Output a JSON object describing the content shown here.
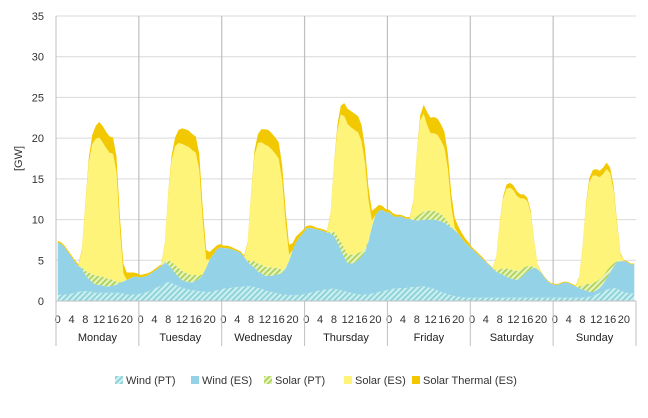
{
  "chart_data": {
    "type": "area",
    "stacked": true,
    "ylabel": "[GW]",
    "ylim": [
      0,
      35
    ],
    "yticks": [
      0,
      5,
      10,
      15,
      20,
      25,
      30,
      35
    ],
    "grid": true,
    "legend_position": "bottom",
    "days": [
      "Monday",
      "Tuesday",
      "Wednesday",
      "Thursday",
      "Friday",
      "Saturday",
      "Sunday"
    ],
    "hour_labels": [
      "0",
      "4",
      "8",
      "12",
      "16",
      "20"
    ],
    "series": [
      {
        "name": "Wind (PT)",
        "color": "#9fdcdc",
        "pattern": "hatch",
        "values": [
          0.7,
          0.8,
          0.8,
          0.8,
          0.9,
          1.0,
          1.1,
          1.2,
          1.2,
          1.2,
          1.1,
          1.0,
          1.0,
          1.0,
          1.0,
          1.0,
          1.0,
          1.0,
          1.0,
          0.9,
          0.8,
          0.8,
          0.8,
          0.8,
          0.9,
          1.0,
          1.1,
          1.3,
          1.5,
          1.7,
          1.9,
          2.2,
          2.3,
          2.2,
          2.0,
          1.8,
          1.6,
          1.5,
          1.4,
          1.3,
          1.3,
          1.2,
          1.2,
          1.1,
          1.1,
          1.2,
          1.3,
          1.4,
          1.5,
          1.6,
          1.6,
          1.7,
          1.7,
          1.7,
          1.8,
          1.8,
          1.8,
          1.7,
          1.6,
          1.5,
          1.3,
          1.2,
          1.1,
          1.0,
          0.9,
          0.8,
          0.8,
          0.7,
          0.7,
          0.7,
          0.8,
          0.8,
          0.9,
          1.0,
          1.1,
          1.2,
          1.3,
          1.4,
          1.4,
          1.5,
          1.5,
          1.4,
          1.3,
          1.2,
          1.1,
          1.0,
          0.9,
          0.8,
          0.8,
          0.8,
          0.8,
          0.9,
          1.0,
          1.1,
          1.2,
          1.3,
          1.4,
          1.5,
          1.5,
          1.6,
          1.6,
          1.6,
          1.7,
          1.7,
          1.7,
          1.8,
          1.8,
          1.7,
          1.6,
          1.5,
          1.3,
          1.1,
          1.0,
          0.8,
          0.7,
          0.6,
          0.5,
          0.5,
          0.4,
          0.4,
          0.4,
          0.4,
          0.4,
          0.4,
          0.4,
          0.4,
          0.4,
          0.4,
          0.4,
          0.4,
          0.4,
          0.4,
          0.4,
          0.4,
          0.4,
          0.4,
          0.4,
          0.4,
          0.4,
          0.4,
          0.4,
          0.4,
          0.4,
          0.4,
          0.4,
          0.4,
          0.4,
          0.4,
          0.4,
          0.4,
          0.4,
          0.4,
          0.4,
          0.5,
          0.5,
          0.6,
          0.8,
          1.0,
          1.2,
          1.4,
          1.5,
          1.6,
          1.5,
          1.3,
          1.1,
          1.0,
          0.9,
          0.9
        ]
      },
      {
        "name": "Wind (ES)",
        "color": "#94d3e7",
        "values": [
          6.5,
          6.2,
          5.8,
          5.2,
          4.5,
          3.8,
          3.2,
          2.8,
          2.0,
          1.5,
          1.2,
          1.0,
          1.0,
          0.9,
          0.8,
          0.8,
          0.9,
          1.0,
          1.2,
          1.5,
          1.8,
          2.0,
          2.2,
          2.2,
          2.0,
          2.0,
          2.0,
          2.1,
          2.2,
          2.3,
          2.4,
          2.5,
          2.2,
          1.8,
          1.4,
          1.2,
          1.0,
          0.9,
          0.9,
          1.0,
          1.2,
          1.5,
          2.0,
          3.0,
          4.0,
          4.5,
          5.0,
          5.2,
          5.0,
          4.9,
          4.8,
          4.6,
          4.4,
          4.2,
          3.6,
          3.0,
          2.6,
          2.4,
          2.0,
          1.9,
          1.8,
          1.9,
          2.0,
          2.2,
          2.4,
          2.6,
          3.2,
          4.2,
          5.5,
          6.5,
          7.0,
          7.5,
          8.0,
          8.0,
          7.8,
          7.6,
          7.4,
          7.2,
          7.0,
          6.8,
          6.5,
          5.8,
          5.0,
          4.2,
          3.5,
          3.6,
          3.8,
          4.2,
          4.6,
          5.2,
          6.5,
          8.2,
          9.5,
          10.0,
          10.0,
          9.6,
          9.5,
          9.0,
          8.8,
          8.8,
          8.7,
          8.5,
          8.4,
          8.2,
          8.2,
          8.1,
          8.2,
          8.3,
          8.4,
          8.5,
          8.6,
          8.7,
          8.6,
          8.5,
          8.3,
          8.1,
          7.8,
          7.2,
          6.8,
          6.4,
          6.0,
          5.6,
          5.2,
          4.8,
          4.4,
          4.0,
          3.6,
          3.2,
          3.0,
          2.8,
          2.6,
          2.4,
          2.3,
          2.2,
          2.4,
          2.8,
          3.2,
          3.5,
          3.7,
          3.5,
          3.1,
          2.5,
          2.0,
          1.7,
          1.6,
          1.6,
          1.8,
          1.9,
          1.8,
          1.6,
          1.4,
          1.2,
          1.0,
          0.8,
          0.6,
          0.5,
          0.5,
          0.6,
          0.9,
          1.4,
          2.0,
          2.6,
          3.3,
          3.6,
          3.8,
          3.8,
          3.6,
          3.6
        ]
      },
      {
        "name": "Solar (PT)",
        "color": "#cde58a",
        "pattern": "hatch",
        "values": [
          0,
          0,
          0,
          0,
          0,
          0,
          0,
          0.2,
          0.5,
          0.8,
          1.0,
          1.1,
          1.1,
          1.1,
          1.0,
          0.9,
          0.7,
          0.4,
          0.1,
          0,
          0,
          0,
          0,
          0,
          0,
          0,
          0,
          0,
          0,
          0,
          0,
          0.2,
          0.5,
          0.8,
          1.0,
          1.1,
          1.1,
          1.1,
          1.0,
          0.9,
          0.7,
          0.4,
          0.1,
          0,
          0,
          0,
          0,
          0,
          0,
          0,
          0,
          0,
          0,
          0,
          0,
          0.2,
          0.5,
          0.8,
          1.0,
          1.1,
          1.1,
          1.1,
          1.0,
          0.9,
          0.7,
          0.4,
          0.1,
          0,
          0,
          0,
          0,
          0,
          0,
          0,
          0,
          0,
          0,
          0,
          0,
          0.2,
          0.5,
          0.8,
          1.0,
          1.1,
          1.1,
          1.1,
          1.0,
          0.9,
          0.7,
          0.4,
          0.1,
          0,
          0,
          0,
          0,
          0,
          0,
          0,
          0,
          0,
          0,
          0,
          0,
          0.2,
          0.5,
          0.8,
          1.0,
          1.1,
          1.1,
          1.1,
          1.0,
          0.9,
          0.7,
          0.4,
          0.1,
          0,
          0,
          0,
          0,
          0,
          0,
          0,
          0,
          0,
          0,
          0,
          0,
          0.2,
          0.5,
          0.8,
          1.0,
          1.1,
          1.1,
          1.1,
          1.0,
          0.9,
          0.7,
          0.4,
          0.1,
          0,
          0,
          0,
          0,
          0,
          0,
          0,
          0,
          0,
          0,
          0,
          0,
          0.2,
          0.5,
          0.8,
          1.0,
          1.1,
          1.1,
          1.1,
          1.0,
          0.9,
          0.7,
          0.4,
          0.1,
          0,
          0,
          0,
          0,
          0
        ]
      },
      {
        "name": "Solar (ES)",
        "color": "#fff47a",
        "values": [
          0,
          0,
          0,
          0,
          0,
          0,
          0,
          2.0,
          8.0,
          13.5,
          16.0,
          16.8,
          17.0,
          16.5,
          16.0,
          15.5,
          15.5,
          13.5,
          6.5,
          1.0,
          0,
          0,
          0,
          0,
          0,
          0,
          0,
          0,
          0,
          0,
          0,
          2.0,
          8.0,
          12.5,
          14.6,
          15.3,
          15.6,
          15.6,
          15.6,
          15.3,
          15.0,
          13.0,
          6.5,
          1.0,
          0,
          0,
          0,
          0,
          0,
          0,
          0,
          0,
          0,
          0,
          0,
          2.0,
          8.0,
          13.0,
          14.8,
          15.0,
          15.0,
          14.8,
          14.5,
          14.0,
          13.5,
          11.0,
          5.5,
          0.8,
          0,
          0,
          0,
          0,
          0,
          0,
          0,
          0,
          0,
          0,
          0,
          2.0,
          8.0,
          13.0,
          15.6,
          16.2,
          16.0,
          15.6,
          15.3,
          14.8,
          13.5,
          10.5,
          5.0,
          0.8,
          0,
          0,
          0,
          0,
          0,
          0,
          0,
          0,
          0,
          0,
          0,
          2.0,
          7.5,
          11.5,
          12.0,
          10.5,
          9.5,
          9.5,
          9.5,
          9.0,
          8.5,
          6.5,
          2.5,
          0.3,
          0,
          0,
          0,
          0,
          0,
          0,
          0,
          0,
          0,
          0,
          0,
          1.5,
          5.5,
          8.5,
          9.8,
          10.0,
          9.8,
          9.2,
          8.8,
          8.5,
          8.0,
          6.5,
          3.0,
          0.5,
          0,
          0,
          0,
          0,
          0,
          0,
          0,
          0,
          0,
          0,
          0,
          1.0,
          4.5,
          9.5,
          12.5,
          13.2,
          13.0,
          12.5,
          12.5,
          12.5,
          11.5,
          9.0,
          4.5,
          0.8,
          0,
          0,
          0,
          0
        ]
      },
      {
        "name": "Solar Thermal (ES)",
        "color": "#f2c900",
        "values": [
          0.2,
          0.2,
          0.2,
          0.2,
          0.2,
          0.2,
          0.2,
          0.2,
          0.3,
          0.6,
          1.1,
          1.6,
          1.9,
          2.0,
          2.0,
          2.0,
          2.0,
          1.9,
          1.6,
          1.2,
          0.9,
          0.7,
          0.5,
          0.4,
          0.3,
          0.3,
          0.3,
          0.2,
          0.2,
          0.2,
          0.2,
          0.2,
          0.3,
          0.6,
          1.1,
          1.6,
          1.9,
          2.0,
          2.0,
          2.0,
          2.0,
          1.9,
          1.6,
          1.2,
          0.9,
          0.7,
          0.5,
          0.4,
          0.3,
          0.3,
          0.3,
          0.2,
          0.2,
          0.2,
          0.2,
          0.2,
          0.3,
          0.6,
          1.1,
          1.6,
          1.9,
          2.0,
          2.0,
          2.0,
          2.0,
          1.9,
          1.6,
          1.2,
          0.9,
          0.7,
          0.5,
          0.4,
          0.3,
          0.3,
          0.3,
          0.2,
          0.2,
          0.2,
          0.2,
          0.2,
          0.3,
          0.6,
          1.1,
          1.6,
          1.9,
          2.0,
          2.0,
          2.0,
          2.0,
          1.9,
          1.6,
          1.2,
          0.9,
          0.7,
          0.5,
          0.4,
          0.3,
          0.3,
          0.3,
          0.2,
          0.2,
          0.2,
          0.2,
          0.2,
          0.3,
          0.6,
          1.1,
          1.6,
          1.9,
          2.0,
          2.0,
          2.0,
          2.0,
          1.9,
          1.6,
          1.2,
          0.9,
          0.7,
          0.5,
          0.4,
          0.2,
          0.2,
          0.2,
          0.2,
          0.1,
          0.1,
          0.1,
          0.1,
          0.2,
          0.3,
          0.5,
          0.6,
          0.6,
          0.6,
          0.5,
          0.5,
          0.4,
          0.3,
          0.2,
          0.1,
          0.1,
          0.1,
          0.1,
          0.1,
          0.1,
          0.1,
          0.1,
          0.1,
          0.1,
          0.1,
          0.1,
          0.1,
          0.2,
          0.3,
          0.5,
          0.7,
          0.8,
          0.8,
          0.8,
          0.8,
          0.7,
          0.6,
          0.4,
          0.2,
          0.1,
          0.1,
          0.1,
          0.1
        ]
      }
    ]
  }
}
